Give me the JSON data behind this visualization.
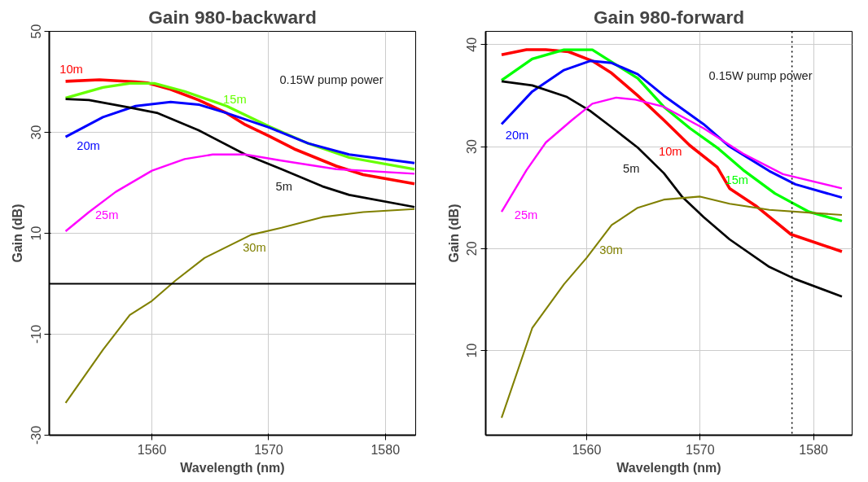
{
  "chart_data": [
    {
      "type": "line",
      "title": "Gain 980-backward",
      "xlabel": "Wavelength (nm)",
      "ylabel": "Gain (dB)",
      "xlim": [
        1551.2,
        1582.6
      ],
      "ylim": [
        -30,
        50
      ],
      "xticks": [
        1560,
        1570,
        1580
      ],
      "yticks": [
        -30,
        -10,
        10,
        30,
        50
      ],
      "grid": true,
      "legend": false,
      "marker": "none",
      "line_style": "solid",
      "ref_lines": [
        {
          "axis": "y",
          "value": 0,
          "color": "#000000",
          "line_style": "solid"
        }
      ],
      "annotations": [
        "0.15W pump power"
      ],
      "series": [
        {
          "name": "10m",
          "color": "#ff0000",
          "x": [
            1552.6,
            1555.5,
            1558.6,
            1559.6,
            1561.6,
            1564,
            1566.4,
            1568,
            1570,
            1572.2,
            1575.8,
            1578.1,
            1582.5
          ],
          "values": [
            40.1,
            40.4,
            40.0,
            39.8,
            38.5,
            36.4,
            33.8,
            31.5,
            29.3,
            26.7,
            23.3,
            21.6,
            19.8
          ]
        },
        {
          "name": "15m",
          "color": "#66ff00",
          "x": [
            1552.6,
            1555.8,
            1558.1,
            1560.2,
            1562.8,
            1566.4,
            1570,
            1573.4,
            1576.9,
            1582.5
          ],
          "values": [
            36.8,
            38.9,
            39.7,
            39.7,
            38.1,
            35.2,
            31.2,
            27.8,
            25.0,
            22.7
          ]
        },
        {
          "name": "20m",
          "color": "#0000ff",
          "x": [
            1552.6,
            1555.8,
            1558.6,
            1561.6,
            1564,
            1566.4,
            1570,
            1573.4,
            1576.9,
            1582.5
          ],
          "values": [
            29.1,
            33.0,
            35.2,
            36.0,
            35.5,
            33.8,
            31.0,
            27.8,
            25.6,
            23.9
          ]
        },
        {
          "name": "5m",
          "color": "#000000",
          "x": [
            1552.6,
            1554.6,
            1558.1,
            1560.5,
            1564,
            1568,
            1571.1,
            1574.6,
            1576.9,
            1582.5
          ],
          "values": [
            36.6,
            36.4,
            34.9,
            33.8,
            30.4,
            25.6,
            22.7,
            19.3,
            17.6,
            15.2
          ]
        },
        {
          "name": "25m",
          "color": "#ff00ff",
          "x": [
            1552.6,
            1554.6,
            1556.9,
            1560,
            1562.8,
            1565.2,
            1568,
            1571.1,
            1575.8,
            1582.5
          ],
          "values": [
            10.4,
            14.2,
            18.2,
            22.4,
            24.7,
            25.6,
            25.6,
            24.4,
            22.7,
            21.8
          ]
        },
        {
          "name": "30m",
          "color": "#808000",
          "x": [
            1552.6,
            1555.8,
            1558.1,
            1560,
            1562,
            1564.5,
            1568.5,
            1571.1,
            1574.6,
            1578.1,
            1582.5
          ],
          "values": [
            -23.6,
            -13.1,
            -6.2,
            -3.4,
            0.6,
            5.1,
            9.7,
            11.1,
            13.2,
            14.2,
            14.8
          ]
        }
      ]
    },
    {
      "type": "line",
      "title": "Gain 980-forward",
      "xlabel": "Wavelength (nm)",
      "ylabel": "Gain (dB)",
      "xlim": [
        1551.1,
        1583.4
      ],
      "ylim": [
        1.7,
        41.3
      ],
      "xticks": [
        1560,
        1570,
        1580
      ],
      "yticks": [
        10,
        20,
        30,
        40
      ],
      "grid": true,
      "legend": false,
      "marker": "none",
      "line_style": "solid",
      "ref_lines": [
        {
          "axis": "x",
          "value": 1578.1,
          "color": "#000000",
          "line_style": "dotted"
        }
      ],
      "annotations": [
        "0.15W pump power"
      ],
      "series": [
        {
          "name": "10m",
          "color": "#ff0000",
          "x": [
            1552.5,
            1554.7,
            1556.4,
            1558.4,
            1560.5,
            1562.2,
            1564.5,
            1566.8,
            1569.1,
            1571.5,
            1572.6,
            1574.9,
            1578,
            1582.5
          ],
          "values": [
            39.0,
            39.5,
            39.5,
            39.3,
            38.4,
            37.2,
            35.0,
            32.6,
            30.1,
            28.0,
            25.9,
            24.2,
            21.4,
            19.7
          ]
        },
        {
          "name": "15m",
          "color": "#00ff00",
          "x": [
            1552.5,
            1555.2,
            1558,
            1560.5,
            1562.2,
            1564.5,
            1566.8,
            1569.1,
            1571.5,
            1573.8,
            1576.6,
            1579.6,
            1582.5
          ],
          "values": [
            36.5,
            38.6,
            39.5,
            39.5,
            38.3,
            36.7,
            33.9,
            31.8,
            29.9,
            27.7,
            25.4,
            23.6,
            22.7
          ]
        },
        {
          "name": "20m",
          "color": "#0000ff",
          "x": [
            1552.5,
            1555.2,
            1558,
            1560.3,
            1562.2,
            1564.5,
            1566.8,
            1570.3,
            1572.6,
            1576.1,
            1578.4,
            1582.5
          ],
          "values": [
            32.2,
            35.4,
            37.5,
            38.4,
            38.2,
            37.1,
            35.0,
            32.2,
            30.0,
            27.6,
            26.3,
            25.0
          ]
        },
        {
          "name": "5m",
          "color": "#000000",
          "x": [
            1552.5,
            1555.2,
            1558.2,
            1560.3,
            1562.2,
            1564.5,
            1566.8,
            1568.4,
            1570.3,
            1572.6,
            1576.1,
            1578.4,
            1582.5
          ],
          "values": [
            36.4,
            36.0,
            34.9,
            33.5,
            31.9,
            29.9,
            27.4,
            25.1,
            23.1,
            20.9,
            18.2,
            17.0,
            15.3
          ]
        },
        {
          "name": "25m",
          "color": "#ff00ff",
          "x": [
            1552.5,
            1554.7,
            1556.4,
            1558.7,
            1560.5,
            1562.6,
            1564.3,
            1566.8,
            1570.3,
            1573.8,
            1577.3,
            1582.5
          ],
          "values": [
            23.6,
            27.7,
            30.4,
            32.6,
            34.2,
            34.8,
            34.6,
            33.9,
            31.8,
            29.3,
            27.3,
            25.9
          ]
        },
        {
          "name": "30m",
          "color": "#808000",
          "x": [
            1552.5,
            1555.2,
            1558,
            1560,
            1562.2,
            1564.5,
            1566.8,
            1570,
            1572.6,
            1576.1,
            1582.5
          ],
          "values": [
            3.4,
            12.2,
            16.5,
            19.1,
            22.3,
            24.0,
            24.8,
            25.1,
            24.4,
            23.8,
            23.3
          ]
        }
      ]
    }
  ]
}
